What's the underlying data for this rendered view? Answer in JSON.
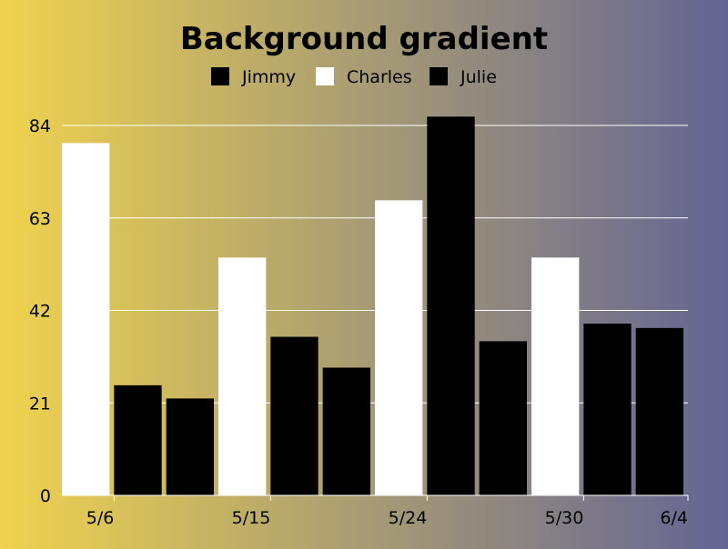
{
  "chart_data": {
    "type": "bar",
    "title": "Background gradient",
    "xlabel": "",
    "ylabel": "",
    "ylim": [
      0,
      84
    ],
    "yticks": [
      0,
      21,
      42,
      63,
      84
    ],
    "xtick_labels": [
      "5/6",
      "5/15",
      "5/24",
      "5/30",
      "6/4"
    ],
    "legend_position": "top",
    "grid": true,
    "series": [
      {
        "name": "Jimmy",
        "color": "#000000"
      },
      {
        "name": "Charles",
        "color": "#FFFFFF"
      },
      {
        "name": "Julie",
        "color": "#000000"
      }
    ],
    "bars": [
      {
        "series": "Charles",
        "value": 80
      },
      {
        "series": "Julie",
        "value": 25
      },
      {
        "series": "Jimmy",
        "value": 22
      },
      {
        "series": "Charles",
        "value": 54
      },
      {
        "series": "Julie",
        "value": 36
      },
      {
        "series": "Jimmy",
        "value": 29
      },
      {
        "series": "Charles",
        "value": 67
      },
      {
        "series": "Julie",
        "value": 86
      },
      {
        "series": "Jimmy",
        "value": 35
      },
      {
        "series": "Charles",
        "value": 54
      },
      {
        "series": "Julie",
        "value": 39
      },
      {
        "series": "Jimmy",
        "value": 38
      }
    ],
    "background_gradient": [
      "#EFD34E",
      "#636494"
    ]
  }
}
